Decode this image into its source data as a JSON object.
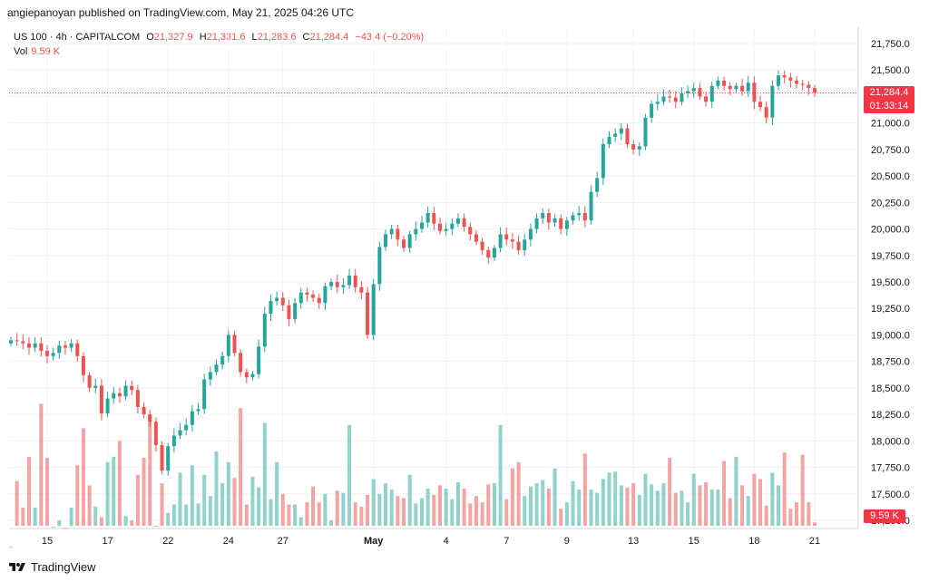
{
  "header": {
    "publish_line": "angiepanoyan published on TradingView.com, May 21, 2025 04:26 UTC"
  },
  "legend": {
    "symbol": "US 100 · 4h · CAPITALCOM",
    "open_label": "O",
    "open": "21,327.9",
    "high_label": "H",
    "high": "21,331.6",
    "low_label": "L",
    "low": "21,283.6",
    "close_label": "C",
    "close": "21,284.4",
    "change": "−43.4 (−0.20%)",
    "vol_label": "Vol",
    "vol_value": "9.59 K"
  },
  "price_tag": {
    "price": "21,284.4",
    "countdown": "01:33:14"
  },
  "vol_tag": {
    "value": "9.59 K"
  },
  "footer": {
    "brand": "TradingView"
  },
  "colors": {
    "up": "#26a69a",
    "down": "#ef5350",
    "vol_up": "#8fd3cb",
    "vol_down": "#f4a4a2",
    "grid": "#f0f3fa",
    "last_price": "#f23645"
  },
  "chart_data": {
    "type": "candlestick",
    "y_ticks": [
      "21,750.0",
      "21,500.0",
      "21,250.0",
      "21,000.0",
      "20,750.0",
      "20,500.0",
      "20,250.0",
      "20,000.0",
      "19,750.0",
      "19,500.0",
      "19,250.0",
      "19,000.0",
      "18,750.0",
      "18,500.0",
      "18,250.0",
      "18,000.0",
      "17,750.0",
      "17,500.0",
      "17,250.0"
    ],
    "ylim": [
      17250,
      21750
    ],
    "last_price": 21284.4,
    "x_ticks": [
      "15",
      "17",
      "22",
      "24",
      "27",
      "May",
      "4",
      "7",
      "9",
      "13",
      "15",
      "18",
      "21"
    ],
    "x_tick_bars": [
      6,
      16,
      26,
      36,
      45,
      60,
      72,
      82,
      92,
      103,
      113,
      123,
      133
    ],
    "n_bars": 134,
    "closes": [
      18950,
      18940,
      18920,
      18880,
      18920,
      18850,
      18800,
      18830,
      18900,
      18880,
      18920,
      18800,
      18620,
      18500,
      18520,
      18260,
      18400,
      18450,
      18420,
      18520,
      18480,
      18320,
      18250,
      18180,
      17960,
      17720,
      17950,
      18050,
      18100,
      18150,
      18280,
      18300,
      18580,
      18650,
      18720,
      18800,
      19000,
      18830,
      18650,
      18600,
      18630,
      18890,
      19200,
      19320,
      19350,
      19280,
      19150,
      19300,
      19400,
      19380,
      19350,
      19300,
      19460,
      19500,
      19450,
      19470,
      19560,
      19450,
      19400,
      19000,
      19480,
      19830,
      19950,
      20000,
      19900,
      19820,
      19950,
      20000,
      20060,
      20150,
      20050,
      19980,
      20000,
      20050,
      20100,
      20020,
      19950,
      19880,
      19800,
      19730,
      19820,
      19950,
      19900,
      19880,
      19800,
      19900,
      20000,
      20100,
      20150,
      20060,
      20100,
      20000,
      20080,
      20130,
      20150,
      20080,
      20350,
      20480,
      20800,
      20870,
      20900,
      20950,
      20800,
      20750,
      20780,
      21050,
      21180,
      21200,
      21250,
      21240,
      21200,
      21280,
      21300,
      21330,
      21250,
      21200,
      21350,
      21400,
      21350,
      21320,
      21350,
      21300,
      21380,
      21200,
      21150,
      21050,
      21350,
      21450,
      21430,
      21400,
      21370,
      21360,
      21330,
      21284
    ],
    "volumes": [
      17000,
      17620,
      17370,
      17850,
      17370,
      18350,
      17840,
      17190,
      17250,
      17180,
      17370,
      17770,
      18120,
      17580,
      17380,
      17280,
      17800,
      17850,
      18000,
      17290,
      17250,
      17680,
      17840,
      18250,
      17200,
      17600,
      17320,
      17400,
      17700,
      17400,
      17770,
      17410,
      17680,
      17480,
      17900,
      17600,
      17800,
      17650,
      18310,
      17400,
      17660,
      17560,
      18170,
      17450,
      17800,
      17500,
      17400,
      17400,
      17280,
      17420,
      17570,
      17420,
      17500,
      17250,
      17530,
      17510,
      18150,
      17420,
      17380,
      17490,
      17640,
      17500,
      17600,
      17540,
      17480,
      17460,
      17680,
      17410,
      17460,
      17550,
      17490,
      17580,
      17550,
      17450,
      17610,
      17550,
      17410,
      17480,
      17420,
      17590,
      17600,
      18150,
      17450,
      17740,
      17800,
      17480,
      17570,
      17600,
      17630,
      17550,
      17740,
      17360,
      17420,
      17620,
      17540,
      17880,
      17540,
      17510,
      17640,
      17700,
      17710,
      17580,
      17560,
      17600,
      17490,
      17690,
      17590,
      17530,
      17600,
      17840,
      17510,
      17530,
      17420,
      17690,
      17580,
      17610,
      17540,
      17540,
      17810,
      17460,
      17850,
      17580,
      17480,
      17690,
      17640,
      17390,
      17700,
      17580,
      17890,
      17360,
      17420,
      17870,
      17420,
      17230
    ]
  }
}
